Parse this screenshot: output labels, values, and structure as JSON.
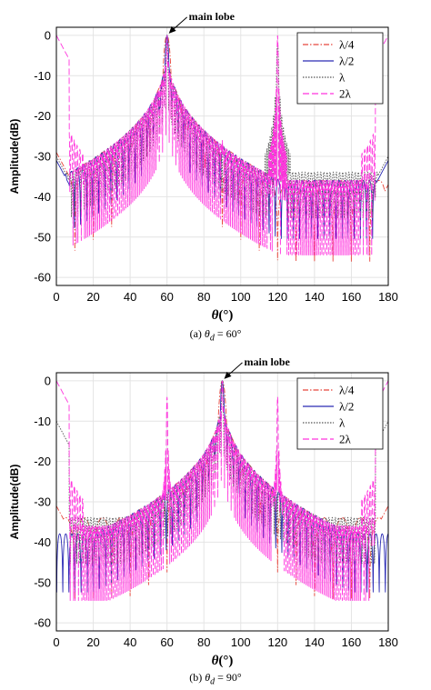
{
  "chart_data": [
    {
      "type": "line",
      "caption": {
        "prefix": "(a)",
        "symbol": "θ",
        "sub": "d",
        "equals": "= 60°"
      },
      "ylabel": "Amplitude(dB)",
      "xlabel": {
        "symbol": "θ",
        "unit": "(°)"
      },
      "xlim": [
        0,
        180
      ],
      "ylim": [
        -62,
        2
      ],
      "xticks": [
        0,
        20,
        40,
        60,
        80,
        100,
        120,
        140,
        160,
        180
      ],
      "yticks": [
        0,
        -10,
        -20,
        -30,
        -40,
        -50,
        -60
      ],
      "grid": true,
      "legend_position": "top-right",
      "annotation": {
        "text": "main lobe",
        "x": 60,
        "y": 0
      },
      "main_lobe": 60,
      "series": [
        {
          "name": "λ/4",
          "color": "#e8463c",
          "dash": "6,2,1.5,2",
          "edge_level": -29,
          "end_level": -37,
          "ripple_period": 10,
          "floor": -36,
          "peaks": [
            {
              "x": 60,
              "y": 0,
              "w": 3
            }
          ]
        },
        {
          "name": "λ/2",
          "color": "#2a2ab4",
          "dash": "",
          "edge_level": -31,
          "end_level": -31,
          "ripple_period": 3.3,
          "floor": -36,
          "peaks": [
            {
              "x": 60,
              "y": 0,
              "w": 1.6
            }
          ]
        },
        {
          "name": "λ",
          "color": "#555555",
          "dash": "1.5,1.5",
          "edge_level": -30,
          "end_level": -30,
          "ripple_period": 1.7,
          "floor": -34,
          "peaks": [
            {
              "x": 60,
              "y": 0,
              "w": 0.9
            },
            {
              "x": 120,
              "y": -2,
              "w": 0.9
            }
          ]
        },
        {
          "name": "2λ",
          "color": "#ff33dd",
          "dash": "7,3",
          "edge_level": 0,
          "end_level": 0,
          "ripple_period": 0.9,
          "floor": -36,
          "peaks": [
            {
              "x": 0,
              "y": 0,
              "w": 1.5
            },
            {
              "x": 60,
              "y": 0,
              "w": 0.6
            },
            {
              "x": 90,
              "y": -26,
              "w": 0.4
            },
            {
              "x": 120,
              "y": 0,
              "w": 0.5
            },
            {
              "x": 180,
              "y": 0,
              "w": 1.5
            }
          ]
        }
      ]
    },
    {
      "type": "line",
      "caption": {
        "prefix": "(b)",
        "symbol": "θ",
        "sub": "d",
        "equals": "= 90°"
      },
      "ylabel": "Amplitude(dB)",
      "xlabel": {
        "symbol": "θ",
        "unit": "(°)"
      },
      "xlim": [
        0,
        180
      ],
      "ylim": [
        -62,
        2
      ],
      "xticks": [
        0,
        20,
        40,
        60,
        80,
        100,
        120,
        140,
        160,
        180
      ],
      "yticks": [
        0,
        -10,
        -20,
        -30,
        -40,
        -50,
        -60
      ],
      "grid": true,
      "legend_position": "top-right",
      "annotation": {
        "text": "main lobe",
        "x": 90,
        "y": 0
      },
      "main_lobe": 90,
      "series": [
        {
          "name": "λ/4",
          "color": "#e8463c",
          "dash": "6,2,1.5,2",
          "edge_level": -31,
          "end_level": -31,
          "ripple_period": 10,
          "floor": -34,
          "peaks": [
            {
              "x": 90,
              "y": 0,
              "w": 3
            }
          ]
        },
        {
          "name": "λ/2",
          "color": "#2a2ab4",
          "dash": "",
          "edge_level": -60,
          "end_level": -60,
          "ripple_period": 3.3,
          "floor": -38,
          "peaks": [
            {
              "x": 90,
              "y": 0,
              "w": 1.6
            }
          ]
        },
        {
          "name": "λ",
          "color": "#555555",
          "dash": "1.5,1.5",
          "edge_level": -10,
          "end_level": -10,
          "ripple_period": 1.7,
          "floor": -34,
          "peaks": [
            {
              "x": 90,
              "y": 0,
              "w": 0.9
            }
          ]
        },
        {
          "name": "2λ",
          "color": "#ff33dd",
          "dash": "7,3",
          "edge_level": 0,
          "end_level": 0,
          "ripple_period": 0.9,
          "floor": -36,
          "peaks": [
            {
              "x": 0,
              "y": 0,
              "w": 1.5
            },
            {
              "x": 60,
              "y": -4,
              "w": 0.5
            },
            {
              "x": 90,
              "y": 0,
              "w": 0.6
            },
            {
              "x": 120,
              "y": -4,
              "w": 0.5
            },
            {
              "x": 180,
              "y": 0,
              "w": 1.5
            }
          ]
        }
      ]
    }
  ]
}
